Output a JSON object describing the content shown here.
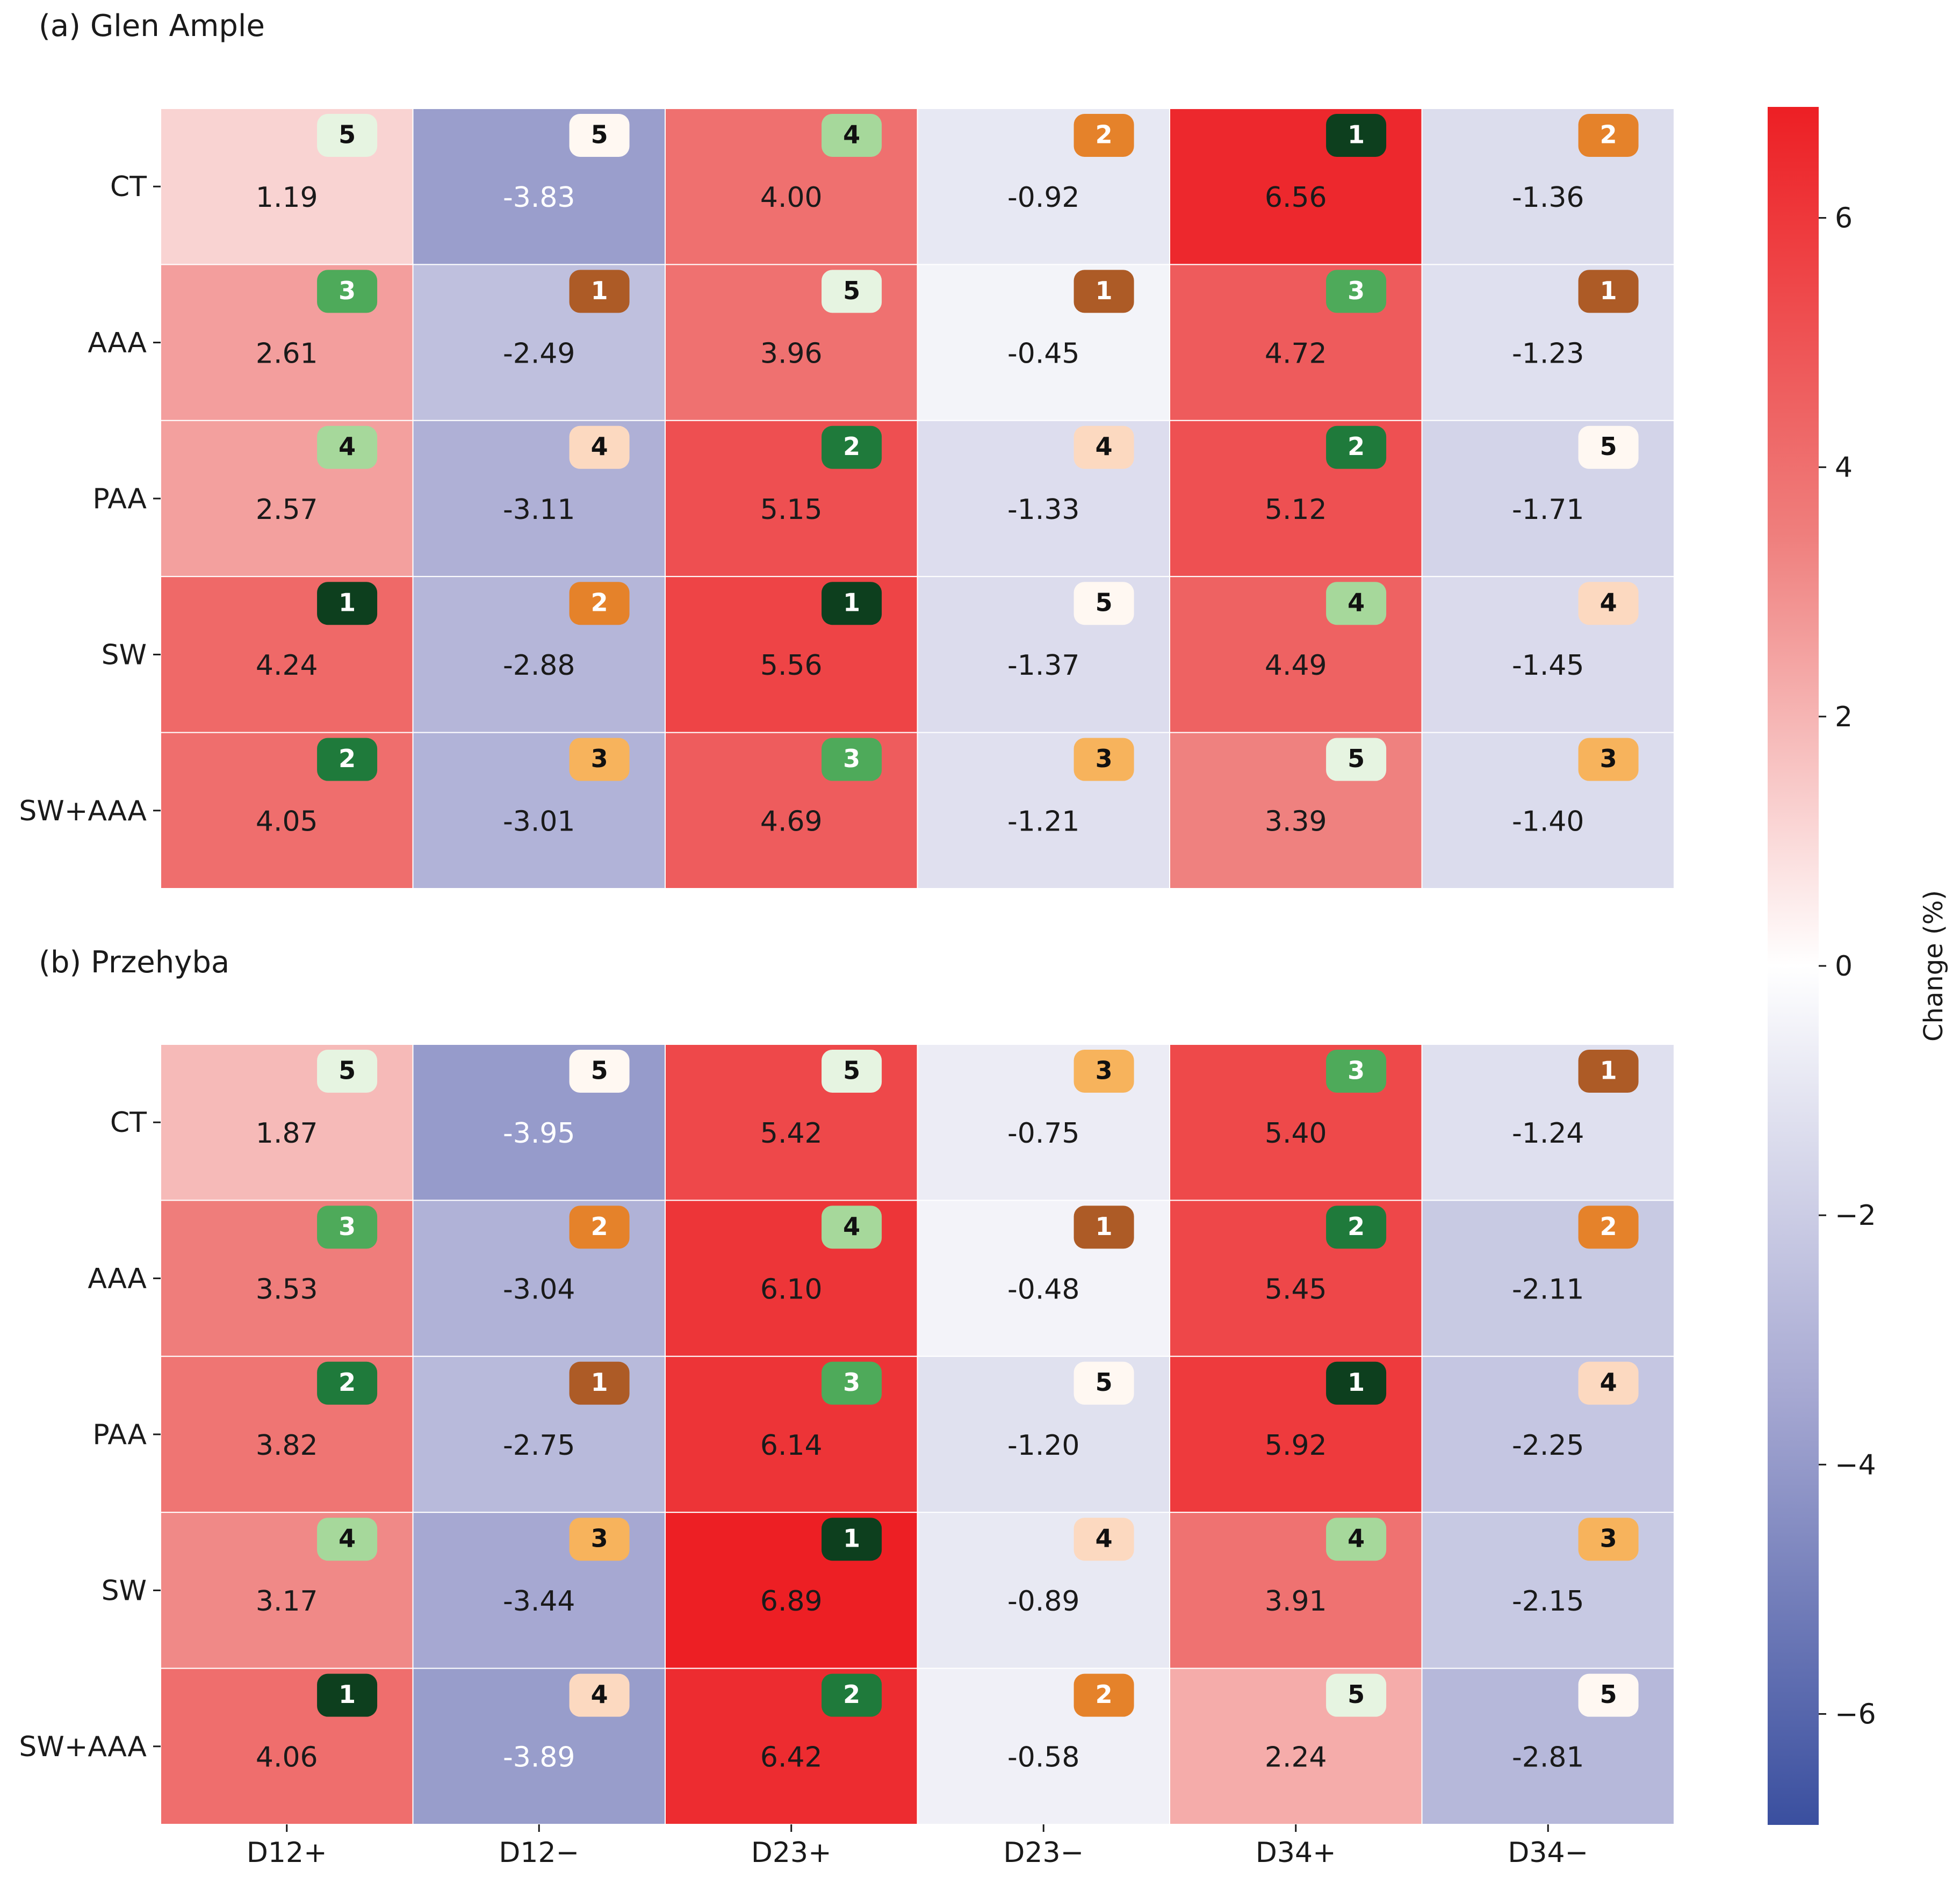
{
  "chart_data": [
    {
      "type": "heatmap",
      "title": "(a) Glen Ample",
      "rows": [
        "CT",
        "AAA",
        "PAA",
        "SW",
        "SW+AAA"
      ],
      "columns": [
        "D12+",
        "D12−",
        "D23+",
        "D23−",
        "D34+",
        "D34−"
      ],
      "values": [
        [
          1.19,
          -3.83,
          4.0,
          -0.92,
          6.56,
          -1.36
        ],
        [
          2.61,
          -2.49,
          3.96,
          -0.45,
          4.72,
          -1.23
        ],
        [
          2.57,
          -3.11,
          5.15,
          -1.33,
          5.12,
          -1.71
        ],
        [
          4.24,
          -2.88,
          5.56,
          -1.37,
          4.49,
          -1.45
        ],
        [
          4.05,
          -3.01,
          4.69,
          -1.21,
          3.39,
          -1.4
        ]
      ],
      "value_labels": [
        [
          "1.19",
          "-3.83",
          "4.00",
          "-0.92",
          "6.56",
          "-1.36"
        ],
        [
          "2.61",
          "-2.49",
          "3.96",
          "-0.45",
          "4.72",
          "-1.23"
        ],
        [
          "2.57",
          "-3.11",
          "5.15",
          "-1.33",
          "5.12",
          "-1.71"
        ],
        [
          "4.24",
          "-2.88",
          "5.56",
          "-1.37",
          "4.49",
          "-1.45"
        ],
        [
          "4.05",
          "-3.01",
          "4.69",
          "-1.21",
          "3.39",
          "-1.40"
        ]
      ],
      "ranks": [
        [
          5,
          5,
          4,
          2,
          1,
          2
        ],
        [
          3,
          1,
          5,
          1,
          3,
          1
        ],
        [
          4,
          4,
          2,
          4,
          2,
          5
        ],
        [
          1,
          2,
          1,
          5,
          4,
          4
        ],
        [
          2,
          3,
          3,
          3,
          5,
          3
        ]
      ],
      "xlabel": "",
      "ylabel": ""
    },
    {
      "type": "heatmap",
      "title": "(b) Przehyba",
      "rows": [
        "CT",
        "AAA",
        "PAA",
        "SW",
        "SW+AAA"
      ],
      "columns": [
        "D12+",
        "D12−",
        "D23+",
        "D23−",
        "D34+",
        "D34−"
      ],
      "values": [
        [
          1.87,
          -3.95,
          5.42,
          -0.75,
          5.4,
          -1.24
        ],
        [
          3.53,
          -3.04,
          6.1,
          -0.48,
          5.45,
          -2.11
        ],
        [
          3.82,
          -2.75,
          6.14,
          -1.2,
          5.92,
          -2.25
        ],
        [
          3.17,
          -3.44,
          6.89,
          -0.89,
          3.91,
          -2.15
        ],
        [
          4.06,
          -3.89,
          6.42,
          -0.58,
          2.24,
          -2.81
        ]
      ],
      "value_labels": [
        [
          "1.87",
          "-3.95",
          "5.42",
          "-0.75",
          "5.40",
          "-1.24"
        ],
        [
          "3.53",
          "-3.04",
          "6.10",
          "-0.48",
          "5.45",
          "-2.11"
        ],
        [
          "3.82",
          "-2.75",
          "6.14",
          "-1.20",
          "5.92",
          "-2.25"
        ],
        [
          "3.17",
          "-3.44",
          "6.89",
          "-0.89",
          "3.91",
          "-2.15"
        ],
        [
          "4.06",
          "-3.89",
          "6.42",
          "-0.58",
          "2.24",
          "-2.81"
        ]
      ],
      "ranks": [
        [
          5,
          5,
          5,
          3,
          3,
          1
        ],
        [
          3,
          2,
          4,
          1,
          2,
          2
        ],
        [
          2,
          1,
          3,
          5,
          1,
          4
        ],
        [
          4,
          3,
          1,
          4,
          4,
          3
        ],
        [
          1,
          4,
          2,
          2,
          5,
          5
        ]
      ],
      "xlabel": "",
      "ylabel": ""
    }
  ],
  "colorbar": {
    "label": "Change (%)",
    "range": [
      -6.89,
      6.89
    ],
    "ticks": [
      6,
      4,
      2,
      0,
      -2,
      -4,
      -6
    ],
    "tick_labels": [
      "6",
      "4",
      "2",
      "0",
      "−2",
      "−4",
      "−6"
    ],
    "colors": {
      "low": "#3a4f9f",
      "mid": "#ffffff",
      "high": "#ed1f24"
    }
  },
  "rank_badge_colors": {
    "positive": {
      "1": "#0d3f1e",
      "2": "#1f7a3b",
      "3": "#4eaa5a",
      "4": "#a6d89b",
      "5": "#e6f4e1"
    },
    "negative": {
      "1": "#ad5b26",
      "2": "#e5822a",
      "3": "#f7b35c",
      "4": "#fcd9c0",
      "5": "#fff8f2"
    }
  }
}
